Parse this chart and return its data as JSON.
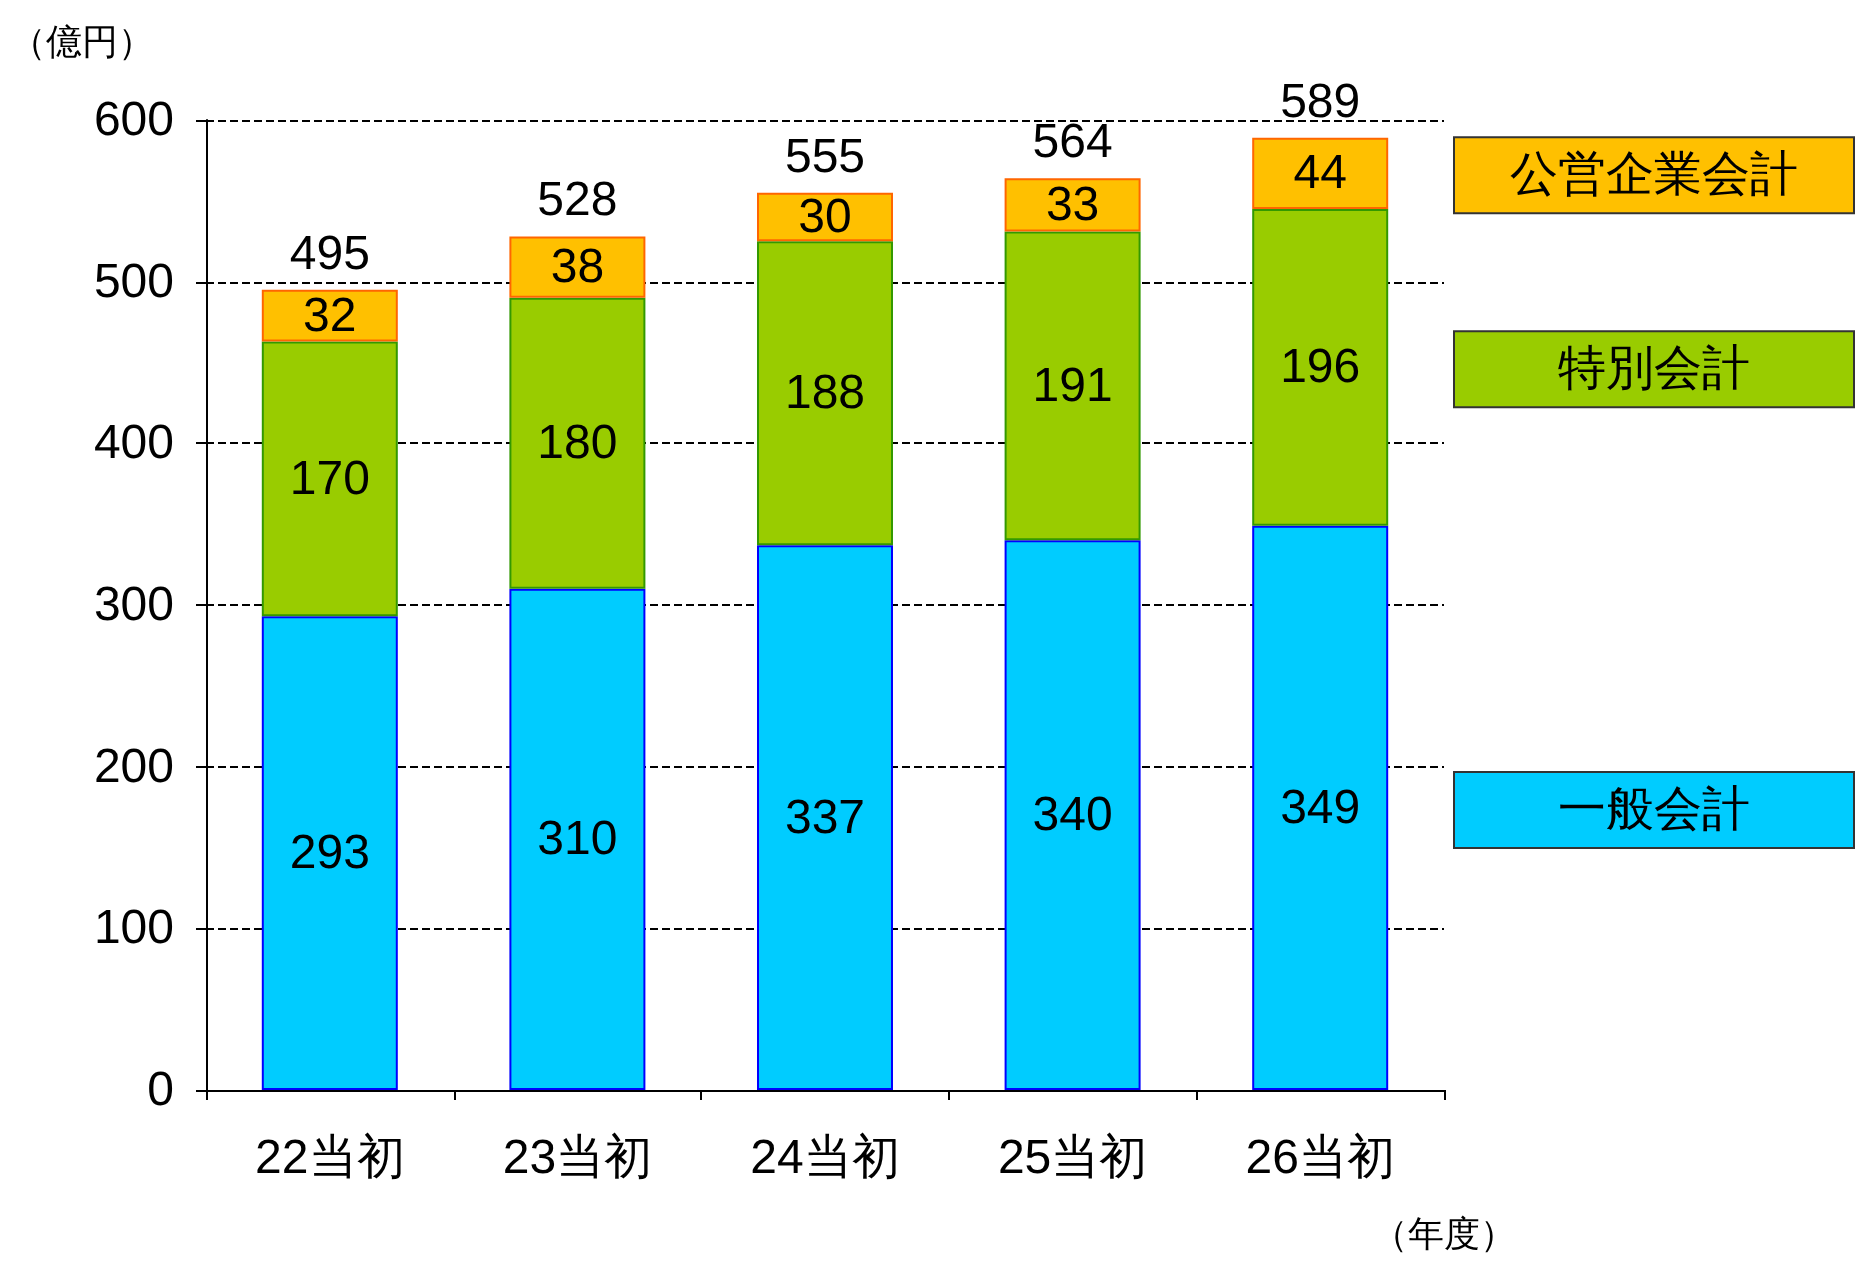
{
  "chart_data": {
    "type": "bar",
    "stacked": true,
    "xlabel": "（年度）",
    "ylabel": "（億円）",
    "categories": [
      "22当初",
      "23当初",
      "24当初",
      "25当初",
      "26当初"
    ],
    "series": [
      {
        "name": "一般会計",
        "color": "#00ccff",
        "values": [
          293,
          310,
          337,
          340,
          349
        ]
      },
      {
        "name": "特別会計",
        "color": "#99cc00",
        "values": [
          170,
          180,
          188,
          191,
          196
        ]
      },
      {
        "name": "公営企業会計",
        "color": "#ffc000",
        "values": [
          32,
          38,
          30,
          33,
          44
        ]
      }
    ],
    "totals": [
      "495",
      "528",
      "555",
      "564",
      "589"
    ],
    "ylim": [
      0,
      600
    ],
    "yticks": [
      0,
      100,
      200,
      300,
      400,
      500,
      600
    ],
    "grid": "y",
    "legend": "right",
    "data_labels": true
  }
}
